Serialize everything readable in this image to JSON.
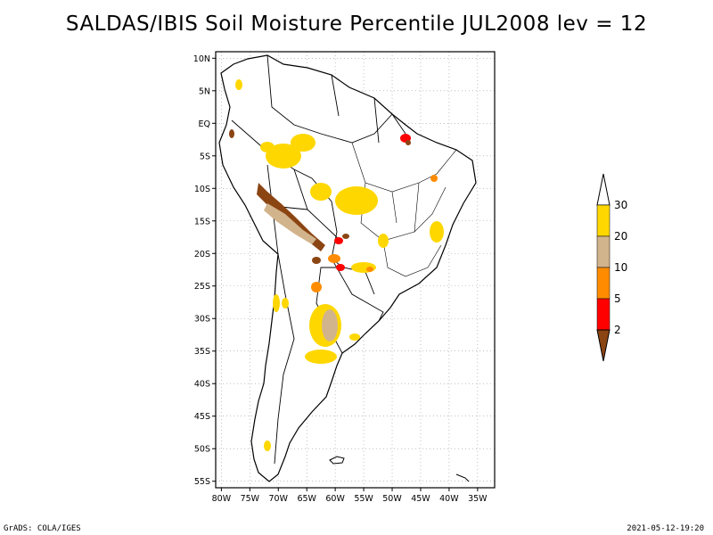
{
  "title": "SALDAS/IBIS Soil Moisture Percentile JUL2008 lev = 12",
  "footer": {
    "left": "GrADS: COLA/IGES",
    "right": "2021-05-12-19:20"
  },
  "map": {
    "lat_ticks": [
      "10N",
      "5N",
      "EQ",
      "5S",
      "10S",
      "15S",
      "20S",
      "25S",
      "30S",
      "35S",
      "40S",
      "45S",
      "50S",
      "55S"
    ],
    "lon_ticks": [
      "80W",
      "75W",
      "70W",
      "65W",
      "60W",
      "55W",
      "50W",
      "45W",
      "40W",
      "35W"
    ],
    "lat_values": [
      10,
      5,
      0,
      -5,
      -10,
      -15,
      -20,
      -25,
      -30,
      -35,
      -40,
      -45,
      -50,
      -55
    ],
    "lon_values": [
      -80,
      -75,
      -70,
      -65,
      -60,
      -55,
      -50,
      -45,
      -40,
      -35
    ],
    "lon_range": [
      -81,
      -32
    ],
    "lat_range": [
      -56,
      11
    ],
    "grid": "dotted"
  },
  "legend": {
    "labels": [
      "30",
      "20",
      "10",
      "5",
      "2"
    ],
    "colors": [
      "#ffd700",
      "#d2b48c",
      "#ff8c00",
      "#ff0000",
      "#8b4513"
    ],
    "top_color": "#ffffff"
  }
}
